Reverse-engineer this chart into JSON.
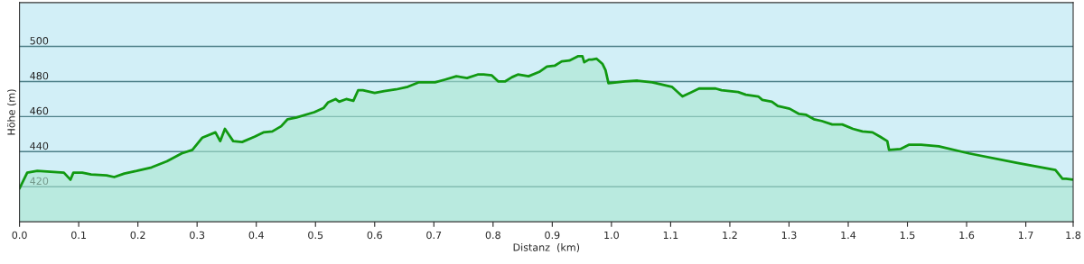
{
  "chart_data": {
    "type": "area",
    "xlabel": "Distanz  (km)",
    "ylabel": "Höhe (m)",
    "xlim": [
      0,
      1.78
    ],
    "xticks": [
      {
        "value": 0,
        "label": "0.0"
      },
      {
        "value": 0.1,
        "label": "0.1"
      },
      {
        "value": 0.2,
        "label": "0.2"
      },
      {
        "value": 0.3,
        "label": "0.3"
      },
      {
        "value": 0.4,
        "label": "0.4"
      },
      {
        "value": 0.5,
        "label": "0.5"
      },
      {
        "value": 0.6,
        "label": "0.6"
      },
      {
        "value": 0.7,
        "label": "0.7"
      },
      {
        "value": 0.8,
        "label": "0.8"
      },
      {
        "value": 0.9,
        "label": "0.9"
      },
      {
        "value": 1.0,
        "label": "1.0"
      },
      {
        "value": 1.1,
        "label": "1.1"
      },
      {
        "value": 1.2,
        "label": "1.2"
      },
      {
        "value": 1.3,
        "label": "1.3"
      },
      {
        "value": 1.4,
        "label": "1.4"
      },
      {
        "value": 1.5,
        "label": "1.5"
      },
      {
        "value": 1.6,
        "label": "1.6"
      },
      {
        "value": 1.7,
        "label": "1.7"
      },
      {
        "value": 1.78,
        "label": "1.8"
      }
    ],
    "ylim": [
      400,
      525
    ],
    "yticks": [
      420,
      440,
      460,
      480,
      500
    ],
    "grid": "y",
    "series": [
      {
        "color": "#119911",
        "x": [
          0,
          0.013,
          0.03,
          0.075,
          0.086,
          0.091,
          0.106,
          0.121,
          0.147,
          0.16,
          0.177,
          0.198,
          0.223,
          0.249,
          0.274,
          0.292,
          0.309,
          0.331,
          0.339,
          0.347,
          0.361,
          0.376,
          0.397,
          0.412,
          0.427,
          0.442,
          0.453,
          0.468,
          0.498,
          0.514,
          0.521,
          0.534,
          0.54,
          0.552,
          0.564,
          0.572,
          0.58,
          0.6,
          0.616,
          0.636,
          0.656,
          0.674,
          0.702,
          0.718,
          0.738,
          0.756,
          0.774,
          0.784,
          0.798,
          0.809,
          0.82,
          0.832,
          0.842,
          0.86,
          0.878,
          0.891,
          0.904,
          0.916,
          0.929,
          0.944,
          0.951,
          0.954,
          0.962,
          0.967,
          0.975,
          0.985,
          0.99,
          0.995,
          1.023,
          1.044,
          1.069,
          1.102,
          1.12,
          1.148,
          1.176,
          1.186,
          1.214,
          1.227,
          1.248,
          1.255,
          1.271,
          1.281,
          1.301,
          1.317,
          1.329,
          1.342,
          1.355,
          1.373,
          1.39,
          1.408,
          1.424,
          1.441,
          1.454,
          1.466,
          1.469,
          1.488,
          1.503,
          1.523,
          1.553,
          1.604,
          1.686,
          1.75,
          1.762,
          1.768,
          1.78
        ],
        "values": [
          419,
          428,
          429,
          428,
          424,
          428,
          428,
          427,
          426.5,
          425.5,
          427.5,
          429,
          431,
          434.5,
          439,
          441,
          448,
          451,
          446,
          453,
          446,
          445.5,
          448.5,
          451,
          451.5,
          454.5,
          458.5,
          459.5,
          462.5,
          465,
          468,
          470,
          468.5,
          470,
          469,
          475,
          475,
          473.5,
          474.5,
          475.5,
          477,
          479.5,
          479.5,
          481,
          483,
          482,
          484,
          484,
          483.5,
          480,
          480,
          482.5,
          484,
          483,
          485.5,
          488.5,
          489,
          491.5,
          492,
          494.5,
          494.5,
          491,
          492.5,
          492.5,
          493,
          490,
          486.5,
          479,
          480,
          480.5,
          479.5,
          477,
          471.5,
          476,
          476,
          475,
          474,
          472.5,
          471.5,
          469.5,
          468.5,
          466,
          464.5,
          461.5,
          461,
          458.5,
          457.5,
          455.5,
          455.5,
          453,
          451.5,
          451,
          448.5,
          446,
          441,
          441.5,
          444,
          444,
          443,
          439,
          433.5,
          429.5,
          424.5,
          424.5,
          424
        ]
      }
    ]
  }
}
